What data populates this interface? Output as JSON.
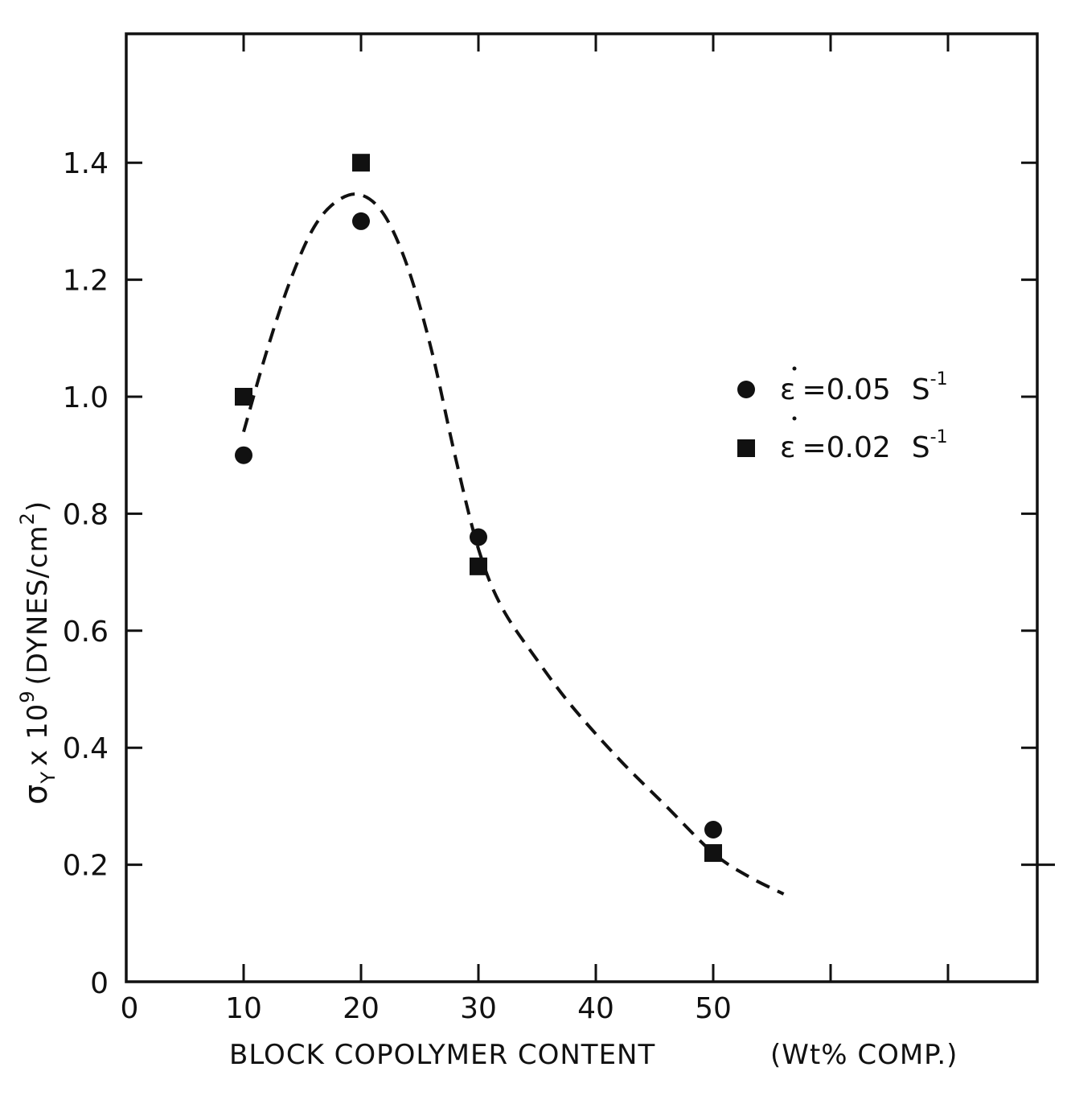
{
  "chart_data": {
    "type": "scatter",
    "title": "",
    "xlabel": "BLOCK COPOLYMER CONTENT",
    "xlabel_unit": "(Wt% COMP.)",
    "ylabel_symbol": "σ",
    "ylabel_subscript": "Y",
    "ylabel_multiplier": "x 10",
    "ylabel_exponent": "9",
    "ylabel_units_open": "(DYNES/cm",
    "ylabel_units_exp": "2",
    "ylabel_units_close": ")",
    "xlim": [
      0,
      78
    ],
    "ylim": [
      0,
      1.6
    ],
    "x_ticks": [
      0,
      10,
      20,
      30,
      40,
      50
    ],
    "x_tick_labels": [
      "0",
      "10",
      "20",
      "30",
      "40",
      "50"
    ],
    "x_tick_marks_unlabeled": [
      60,
      70
    ],
    "y_ticks": [
      0,
      0.2,
      0.4,
      0.6,
      0.8,
      1.0,
      1.2,
      1.4
    ],
    "y_tick_labels": [
      "0",
      "0.2",
      "0.4",
      "0.6",
      "0.8",
      "1.0",
      "1.2",
      "1.4"
    ],
    "grid": false,
    "legend_position": "right",
    "series": [
      {
        "name": "ε̇ =0.05 S⁻¹",
        "legend_symbol": "ε",
        "legend_value": "=0.05",
        "legend_unit": "S",
        "legend_unit_exp": "-1",
        "marker": "circle",
        "x": [
          10,
          20,
          30,
          50
        ],
        "y": [
          0.9,
          1.3,
          0.76,
          0.26
        ]
      },
      {
        "name": "ε̇ =0.02 S⁻¹",
        "legend_symbol": "ε",
        "legend_value": "=0.02",
        "legend_unit": "S",
        "legend_unit_exp": "-1",
        "marker": "square",
        "x": [
          10,
          20,
          30,
          50
        ],
        "y": [
          1.0,
          1.4,
          0.71,
          0.22
        ]
      }
    ],
    "fit_curve": {
      "style": "dashed",
      "x": [
        10,
        12,
        14,
        16,
        18,
        20,
        22,
        24,
        26,
        28,
        30,
        32,
        35,
        38,
        42,
        46,
        50,
        53,
        56
      ],
      "y": [
        0.94,
        1.08,
        1.2,
        1.29,
        1.335,
        1.345,
        1.31,
        1.22,
        1.08,
        0.9,
        0.74,
        0.64,
        0.55,
        0.47,
        0.38,
        0.3,
        0.22,
        0.18,
        0.15
      ]
    }
  }
}
